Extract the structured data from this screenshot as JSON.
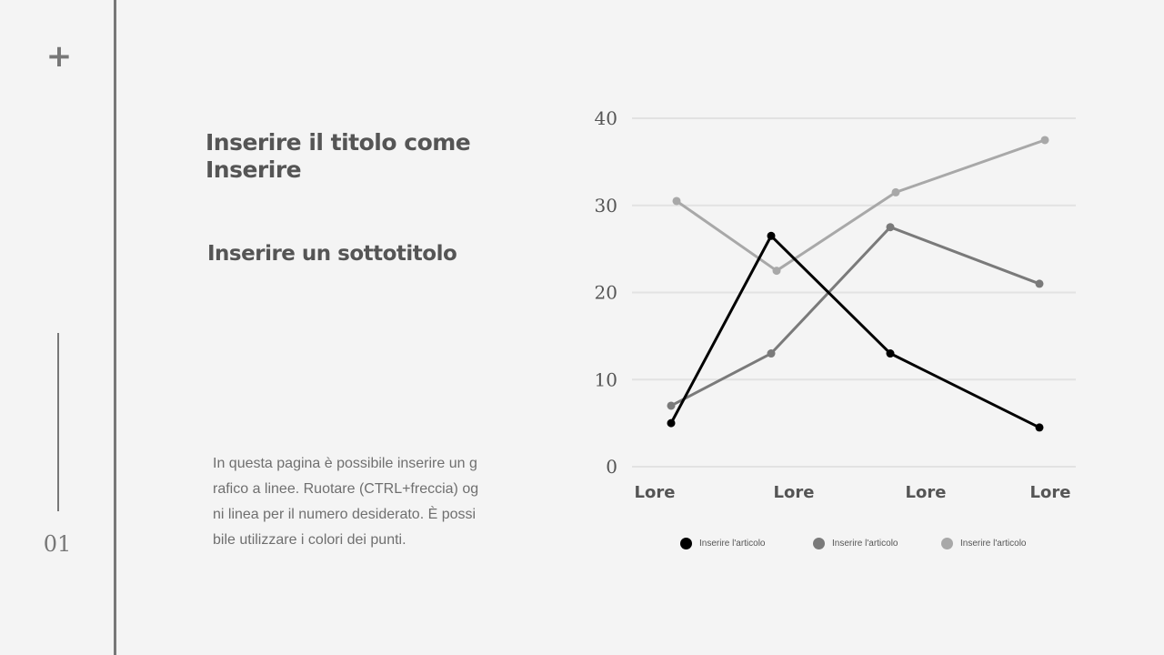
{
  "sidebar": {
    "plus": "+",
    "page_number": "01"
  },
  "title": {
    "line1": "Inserire il titolo come",
    "line2": "Inserire"
  },
  "subtitle": "Inserire un sottotitolo",
  "body": {
    "lines": [
      "In questa pagina è possibile inserire un g",
      "rafico a linee. Ruotare (CTRL+freccia) og",
      "ni linea per il numero desiderato. È possi",
      "bile utilizzare i colori dei punti."
    ]
  },
  "chart_data": {
    "type": "line",
    "categories": [
      "Lore",
      "Lore",
      "Lore",
      "Lore"
    ],
    "ylim": [
      0,
      40
    ],
    "yticks": [
      "0",
      "10",
      "20",
      "30",
      "40"
    ],
    "grid": true,
    "legend_position": "bottom",
    "series": [
      {
        "name": "Inserire l'articolo",
        "color": "#000000",
        "values": [
          5,
          26.5,
          13,
          4.5
        ]
      },
      {
        "name": "Inserire l'articolo",
        "color": "#7a7a7a",
        "values": [
          7,
          13,
          27.5,
          21
        ]
      },
      {
        "name": "Inserire l'articolo",
        "color": "#a8a8a8",
        "values": [
          30.5,
          22.5,
          31.5,
          37.5
        ]
      }
    ]
  }
}
